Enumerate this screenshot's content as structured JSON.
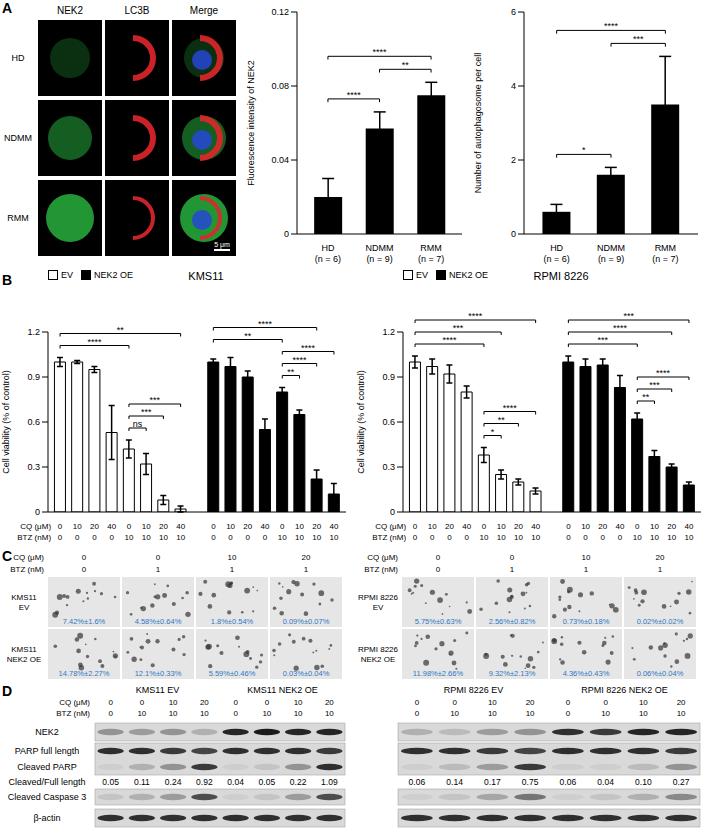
{
  "panel_labels": [
    "A",
    "B",
    "C",
    "D"
  ],
  "panel_A_images": {
    "column_labels": [
      "NEK2",
      "LC3B",
      "Merge"
    ],
    "row_labels": [
      "HD",
      "NDMM",
      "RMM"
    ],
    "scale_bar": "5 μm"
  },
  "chart_data": [
    {
      "type": "bar",
      "y_label": "Fluorescence intensity of NEK2",
      "categories": [
        [
          "HD",
          "(n = 6)"
        ],
        [
          "NDMM",
          "(n = 9)"
        ],
        [
          "RMM",
          "(n = 7)"
        ]
      ],
      "values": [
        0.02,
        0.057,
        0.075
      ],
      "errors": [
        0.01,
        0.009,
        0.007
      ],
      "color": "#000000",
      "ylim": [
        0,
        0.12
      ],
      "yticks": [
        0,
        0.04,
        0.08,
        0.12
      ],
      "annotations": [
        {
          "from": 0,
          "to": 1,
          "label": "****"
        },
        {
          "from": 1,
          "to": 2,
          "label": "**"
        },
        {
          "from": 0,
          "to": 2,
          "label": "****"
        }
      ]
    },
    {
      "type": "bar",
      "y_label": "Number of autophagosome per cell",
      "categories": [
        [
          "HD",
          "(n = 6)"
        ],
        [
          "NDMM",
          "(n = 9)"
        ],
        [
          "RMM",
          "(n = 7)"
        ]
      ],
      "values": [
        0.6,
        1.6,
        3.5
      ],
      "errors": [
        0.2,
        0.2,
        1.3
      ],
      "color": "#000000",
      "ylim": [
        0,
        6
      ],
      "yticks": [
        0,
        2,
        4,
        6
      ],
      "annotations": [
        {
          "from": 0,
          "to": 1,
          "label": "*"
        },
        {
          "from": 1,
          "to": 2,
          "label": "***"
        },
        {
          "from": 0,
          "to": 2,
          "label": "****"
        }
      ]
    },
    {
      "type": "bar",
      "title": "KMS11",
      "y_label": "Cell viability (% of control)",
      "category_row_labels": [
        "CQ (μM)",
        "BTZ (nM)"
      ],
      "categories": [
        [
          "0",
          "0"
        ],
        [
          "10",
          "0"
        ],
        [
          "20",
          "0"
        ],
        [
          "40",
          "0"
        ],
        [
          "0",
          "10"
        ],
        [
          "10",
          "10"
        ],
        [
          "20",
          "10"
        ],
        [
          "40",
          "10"
        ],
        [
          "0",
          "0"
        ],
        [
          "10",
          "0"
        ],
        [
          "20",
          "0"
        ],
        [
          "40",
          "0"
        ],
        [
          "0",
          "10"
        ],
        [
          "10",
          "10"
        ],
        [
          "20",
          "10"
        ],
        [
          "40",
          "10"
        ]
      ],
      "series": [
        {
          "name": "EV",
          "color": "#ffffff",
          "values": [
            1.0,
            1.0,
            0.95,
            0.53,
            0.42,
            0.32,
            0.08,
            0.02,
            null,
            null,
            null,
            null,
            null,
            null,
            null,
            null
          ],
          "errors": [
            0.03,
            0.01,
            0.02,
            0.18,
            0.06,
            0.07,
            0.03,
            0.02,
            null,
            null,
            null,
            null,
            null,
            null,
            null,
            null
          ]
        },
        {
          "name": "NEK2 OE",
          "color": "#000000",
          "values": [
            null,
            null,
            null,
            null,
            null,
            null,
            null,
            null,
            1.0,
            0.97,
            0.9,
            0.55,
            0.8,
            0.65,
            0.22,
            0.12
          ],
          "errors": [
            null,
            null,
            null,
            null,
            null,
            null,
            null,
            null,
            0.02,
            0.06,
            0.04,
            0.07,
            0.03,
            0.03,
            0.06,
            0.07
          ]
        }
      ],
      "ylim": [
        0,
        1.2
      ],
      "yticks": [
        0,
        0.3,
        0.6,
        0.9,
        1.2
      ],
      "legend": "top-left",
      "annotations": [
        {
          "from": 4,
          "to": 5,
          "label": "ns"
        },
        {
          "from": 4,
          "to": 6,
          "label": "***"
        },
        {
          "from": 4,
          "to": 7,
          "label": "***"
        },
        {
          "from": 0,
          "to": 4,
          "label": "****"
        },
        {
          "from": 0,
          "to": 7,
          "label": "**"
        },
        {
          "from": 12,
          "to": 13,
          "label": "**"
        },
        {
          "from": 12,
          "to": 14,
          "label": "****"
        },
        {
          "from": 12,
          "to": 15,
          "label": "****"
        },
        {
          "from": 8,
          "to": 12,
          "label": "**"
        },
        {
          "from": 8,
          "to": 14,
          "label": "****"
        }
      ]
    },
    {
      "type": "bar",
      "title": "RPMI 8226",
      "y_label": "Cell viability (% of control)",
      "category_row_labels": [
        "CQ (μM)",
        "BTZ (nM)"
      ],
      "categories": [
        [
          "0",
          "0"
        ],
        [
          "10",
          "0"
        ],
        [
          "20",
          "0"
        ],
        [
          "40",
          "0"
        ],
        [
          "0",
          "10"
        ],
        [
          "10",
          "10"
        ],
        [
          "20",
          "10"
        ],
        [
          "40",
          "10"
        ],
        [
          "0",
          "0"
        ],
        [
          "10",
          "0"
        ],
        [
          "20",
          "0"
        ],
        [
          "40",
          "0"
        ],
        [
          "0",
          "10"
        ],
        [
          "10",
          "10"
        ],
        [
          "20",
          "10"
        ],
        [
          "40",
          "10"
        ]
      ],
      "series": [
        {
          "name": "EV",
          "color": "#ffffff",
          "values": [
            1.0,
            0.97,
            0.92,
            0.8,
            0.38,
            0.25,
            0.2,
            0.14,
            null,
            null,
            null,
            null,
            null,
            null,
            null,
            null
          ],
          "errors": [
            0.04,
            0.05,
            0.06,
            0.04,
            0.05,
            0.03,
            0.02,
            0.02,
            null,
            null,
            null,
            null,
            null,
            null,
            null,
            null
          ]
        },
        {
          "name": "NEK2 OE",
          "color": "#000000",
          "values": [
            null,
            null,
            null,
            null,
            null,
            null,
            null,
            null,
            1.0,
            0.97,
            0.98,
            0.83,
            0.62,
            0.37,
            0.3,
            0.18
          ],
          "errors": [
            null,
            null,
            null,
            null,
            null,
            null,
            null,
            null,
            0.04,
            0.05,
            0.04,
            0.08,
            0.04,
            0.04,
            0.02,
            0.02
          ]
        }
      ],
      "ylim": [
        0,
        1.2
      ],
      "yticks": [
        0,
        0.3,
        0.6,
        0.9,
        1.2
      ],
      "legend": "top-left",
      "annotations": [
        {
          "from": 4,
          "to": 5,
          "label": "*"
        },
        {
          "from": 4,
          "to": 6,
          "label": "**"
        },
        {
          "from": 4,
          "to": 7,
          "label": "****"
        },
        {
          "from": 0,
          "to": 4,
          "label": "****"
        },
        {
          "from": 0,
          "to": 5,
          "label": "***"
        },
        {
          "from": 0,
          "to": 7,
          "label": "****"
        },
        {
          "from": 12,
          "to": 13,
          "label": "**"
        },
        {
          "from": 12,
          "to": 14,
          "label": "***"
        },
        {
          "from": 12,
          "to": 15,
          "label": "****"
        },
        {
          "from": 8,
          "to": 12,
          "label": "***"
        },
        {
          "from": 8,
          "to": 14,
          "label": "****"
        },
        {
          "from": 8,
          "to": 15,
          "label": "***"
        }
      ]
    }
  ],
  "panel_C": {
    "row_labels": [
      "CQ (μM)",
      "BTZ (nM)"
    ],
    "sides": [
      {
        "cq": [
          0,
          0,
          10,
          20
        ],
        "btz": [
          0,
          1,
          1,
          1
        ],
        "rows": [
          {
            "label": [
              "KMS11",
              "EV"
            ],
            "values": [
              "7.42%±1.6%",
              "4.58%±0.64%",
              "1.8%±0.54%",
              "0.09%±0.07%"
            ]
          },
          {
            "label": [
              "KMS11",
              "NEK2 OE"
            ],
            "values": [
              "14.78%±2.27%",
              "12.1%±0.33%",
              "5.59%±0.46%",
              "0.03%±0.04%"
            ]
          }
        ]
      },
      {
        "cq": [
          0,
          0,
          10,
          20
        ],
        "btz": [
          0,
          1,
          1,
          1
        ],
        "rows": [
          {
            "label": [
              "RPMI 8226",
              "EV"
            ],
            "values": [
              "5.75%±0.63%",
              "2.56%±0.82%",
              "0.73%±0.18%",
              "0.02%±0.02%"
            ]
          },
          {
            "label": [
              "RPMI 8226",
              "NEK2 OE"
            ],
            "values": [
              "11.98%±2.66%",
              "9.32%±2.13%",
              "4.36%±0.43%",
              "0.06%±0.04%"
            ]
          }
        ]
      }
    ]
  },
  "panel_D": {
    "row_labels": [
      "CQ (μM)",
      "BTZ (nM)"
    ],
    "groups": [
      {
        "name": "KMS11 EV",
        "cq": [
          0,
          0,
          10,
          20
        ],
        "btz": [
          0,
          10,
          10,
          10
        ]
      },
      {
        "name": "KMS11 NEK2 OE",
        "cq": [
          0,
          0,
          10,
          20
        ],
        "btz": [
          0,
          10,
          10,
          10
        ]
      },
      {
        "name": "RPMI 8226 EV",
        "cq": [
          0,
          0,
          10,
          20
        ],
        "btz": [
          0,
          10,
          10,
          10
        ]
      },
      {
        "name": "RPMI 8226 NEK2 OE",
        "cq": [
          0,
          0,
          10,
          20
        ],
        "btz": [
          0,
          10,
          10,
          10
        ]
      }
    ],
    "bands": [
      "NEK2",
      "PARP full length",
      "Cleaved PARP",
      "Cleaved Caspase 3",
      "β-actin"
    ],
    "ratio_label": "Cleaved/Full length",
    "ratio_values": [
      "0.05",
      "0.11",
      "0.24",
      "0.92",
      "0.04",
      "0.05",
      "0.22",
      "1.09",
      "0.06",
      "0.14",
      "0.17",
      "0.75",
      "0.06",
      "0.04",
      "0.10",
      "0.27"
    ]
  }
}
